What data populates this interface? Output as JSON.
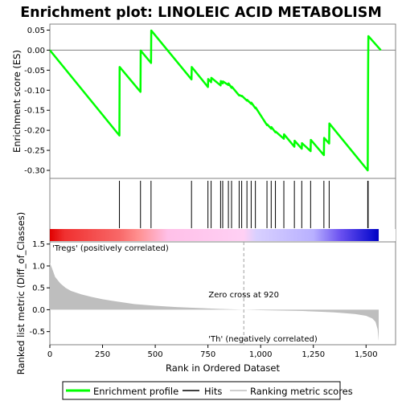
{
  "chart_data": {
    "type": "line",
    "title": "Enrichment plot: LINOLEIC ACID METABOLISM",
    "xlabel": "Rank in Ordered Dataset",
    "top_panel": {
      "ylabel": "Enrichment score (ES)",
      "ylim": [
        -0.32,
        0.065
      ],
      "yticks": [
        "0.05",
        "0.00",
        "-0.05",
        "-0.10",
        "-0.15",
        "-0.20",
        "-0.25",
        "-0.30"
      ],
      "ytick_values": [
        0.05,
        0.0,
        -0.05,
        -0.1,
        -0.15,
        -0.2,
        -0.25,
        -0.3
      ],
      "series": [
        {
          "name": "Enrichment profile",
          "color": "#00ff00",
          "x": [
            0,
            330,
            331,
            430,
            431,
            480,
            481,
            672,
            673,
            750,
            751,
            765,
            766,
            810,
            811,
            820,
            821,
            847,
            848,
            862,
            863,
            898,
            899,
            910,
            911,
            935,
            936,
            955,
            956,
            975,
            976,
            1030,
            1031,
            1050,
            1051,
            1070,
            1071,
            1110,
            1111,
            1160,
            1161,
            1195,
            1196,
            1237,
            1238,
            1300,
            1301,
            1325,
            1326,
            1508,
            1509,
            1510,
            1511,
            1570
          ],
          "y": [
            0.0,
            -0.213,
            -0.042,
            -0.104,
            -0.001,
            -0.032,
            0.049,
            -0.073,
            -0.042,
            -0.092,
            -0.072,
            -0.08,
            -0.069,
            -0.088,
            -0.077,
            -0.083,
            -0.078,
            -0.087,
            -0.083,
            -0.094,
            -0.091,
            -0.113,
            -0.112,
            -0.115,
            -0.114,
            -0.126,
            -0.124,
            -0.134,
            -0.131,
            -0.145,
            -0.143,
            -0.187,
            -0.185,
            -0.196,
            -0.192,
            -0.205,
            -0.203,
            -0.221,
            -0.21,
            -0.241,
            -0.226,
            -0.246,
            -0.232,
            -0.252,
            -0.224,
            -0.262,
            -0.219,
            -0.233,
            -0.183,
            -0.3,
            -0.135,
            -0.03,
            0.035,
            0.0
          ]
        }
      ]
    },
    "hits": {
      "name": "Hits",
      "x": [
        330,
        430,
        480,
        672,
        750,
        765,
        810,
        820,
        847,
        862,
        898,
        910,
        935,
        955,
        975,
        1030,
        1050,
        1070,
        1110,
        1160,
        1195,
        1237,
        1300,
        1325,
        1508,
        1510
      ]
    },
    "ranking_panel": {
      "ylabel": "Ranked list metric (Diff_of_Classes)",
      "name": "Ranking metric scores",
      "ylim": [
        -0.8,
        1.55
      ],
      "yticks": [
        "1.5",
        "1.0",
        "0.5",
        "0.0",
        "-0.5"
      ],
      "ytick_values": [
        1.5,
        1.0,
        0.5,
        0.0,
        -0.5
      ],
      "fill_color": "#bebebe",
      "x": [
        0,
        10,
        25,
        50,
        75,
        100,
        150,
        200,
        250,
        300,
        400,
        500,
        600,
        700,
        800,
        920,
        1000,
        1100,
        1200,
        1300,
        1350,
        1400,
        1450,
        1500,
        1530,
        1545,
        1555,
        1560
      ],
      "y": [
        1.07,
        0.95,
        0.75,
        0.6,
        0.5,
        0.43,
        0.35,
        0.29,
        0.24,
        0.2,
        0.13,
        0.09,
        0.06,
        0.04,
        0.02,
        0.0,
        -0.01,
        -0.02,
        -0.03,
        -0.05,
        -0.06,
        -0.08,
        -0.1,
        -0.14,
        -0.2,
        -0.28,
        -0.45,
        -0.72
      ],
      "zero_cross_label": "Zero cross at 920",
      "zero_cross_x": 920,
      "positive_label": "'Tregs' (positively correlated)",
      "positive_color": "#ff0000",
      "negative_label": "'Th' (negatively correlated)",
      "negative_color": "#0000ff"
    },
    "xlim": [
      0,
      1640
    ],
    "xticks": [
      "0",
      "250",
      "500",
      "750",
      "1,000",
      "1,250",
      "1,500"
    ],
    "xtick_values": [
      0,
      250,
      500,
      750,
      1000,
      1250,
      1500
    ],
    "gradient_stops": [
      {
        "x": 0,
        "color": "#e00000"
      },
      {
        "x": 70,
        "color": "#f03030"
      },
      {
        "x": 330,
        "color": "#f86868"
      },
      {
        "x": 420,
        "color": "#ff9090"
      },
      {
        "x": 560,
        "color": "#ffc0e8"
      },
      {
        "x": 920,
        "color": "#ffd0f4"
      },
      {
        "x": 980,
        "color": "#d8d0ff"
      },
      {
        "x": 1250,
        "color": "#b8b0ff"
      },
      {
        "x": 1380,
        "color": "#6a50f0"
      },
      {
        "x": 1530,
        "color": "#1010d0"
      },
      {
        "x": 1560,
        "color": "#0000c0"
      }
    ],
    "legend": [
      {
        "label": "Enrichment profile",
        "color": "#00ff00"
      },
      {
        "label": "Hits",
        "color": "#000000"
      },
      {
        "label": "Ranking metric scores",
        "color": "#bebebe"
      }
    ],
    "legend_position": "bottom"
  }
}
